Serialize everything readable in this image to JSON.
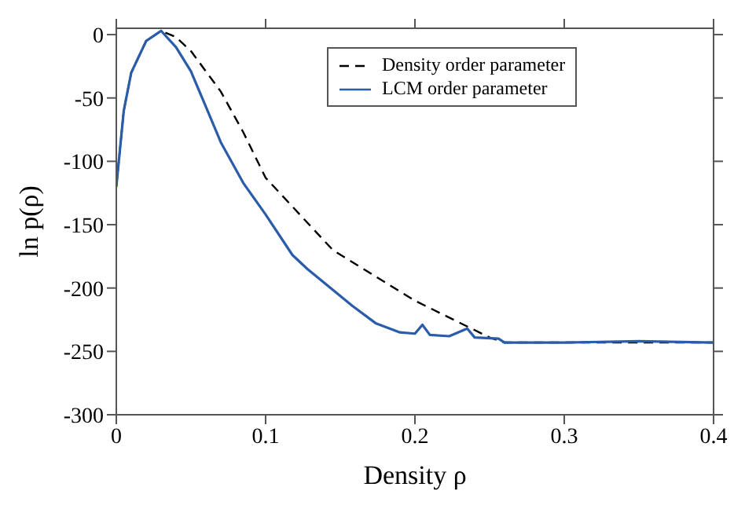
{
  "chart_data": {
    "type": "line",
    "xlabel": "Density ρ",
    "ylabel": "ln p(ρ)",
    "xlim": [
      0,
      0.4
    ],
    "ylim": [
      -300,
      5
    ],
    "xticks": [
      0,
      0.1,
      0.2,
      0.3,
      0.4
    ],
    "yticks": [
      -300,
      -250,
      -200,
      -150,
      -100,
      -50,
      0
    ],
    "legend": "top right",
    "marker": "none",
    "series": [
      {
        "name": "Density order parameter",
        "color": "#000000",
        "line_style": "dashed",
        "x": [
          0,
          0.005,
          0.01,
          0.02,
          0.03,
          0.04,
          0.05,
          0.07,
          0.085,
          0.1,
          0.145,
          0.2,
          0.25,
          0.26,
          0.3,
          0.4
        ],
        "values": [
          -120,
          -60,
          -30,
          -5,
          3,
          -2,
          -13,
          -45,
          -77,
          -113,
          -170,
          -210,
          -239,
          -243,
          -243,
          -243
        ]
      },
      {
        "name": "LCM order parameter",
        "color": "#2a5caa",
        "line_style": "solid",
        "x": [
          0,
          0.005,
          0.01,
          0.02,
          0.03,
          0.04,
          0.05,
          0.07,
          0.085,
          0.1,
          0.118,
          0.128,
          0.158,
          0.174,
          0.19,
          0.2,
          0.205,
          0.21,
          0.223,
          0.235,
          0.24,
          0.256,
          0.26,
          0.3,
          0.35,
          0.4
        ],
        "values": [
          -120,
          -60,
          -30,
          -5,
          3,
          -10,
          -29,
          -85,
          -117,
          -142,
          -174,
          -185,
          -214,
          -228,
          -235,
          -236,
          -229,
          -237,
          -238,
          -232,
          -239,
          -240,
          -243,
          -243,
          -242,
          -243
        ]
      }
    ]
  }
}
